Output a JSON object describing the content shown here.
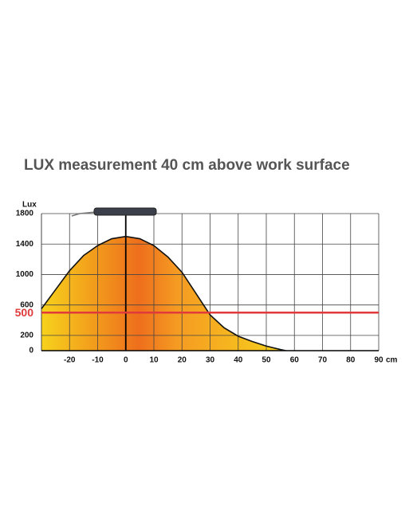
{
  "chart_data": {
    "type": "area",
    "title": "LUX measurement 40 cm above work surface",
    "y_label": "Lux",
    "x_label": "cm",
    "x": [
      -30,
      -25,
      -20,
      -15,
      -10,
      -5,
      0,
      5,
      10,
      15,
      20,
      25,
      30,
      35,
      40,
      45,
      50,
      55,
      57
    ],
    "y": [
      550,
      800,
      1050,
      1250,
      1380,
      1470,
      1500,
      1470,
      1380,
      1230,
      1030,
      750,
      470,
      300,
      190,
      120,
      60,
      15,
      0
    ],
    "xlim": [
      -30,
      90
    ],
    "ylim": [
      0,
      1800
    ],
    "xticks": [
      -20,
      -10,
      0,
      10,
      20,
      30,
      40,
      50,
      60,
      70,
      80,
      90
    ],
    "yticks": [
      0,
      200,
      600,
      1000,
      1400,
      1800
    ],
    "grid": true,
    "reference_line": 500,
    "reference_color": "#e03a3a"
  }
}
